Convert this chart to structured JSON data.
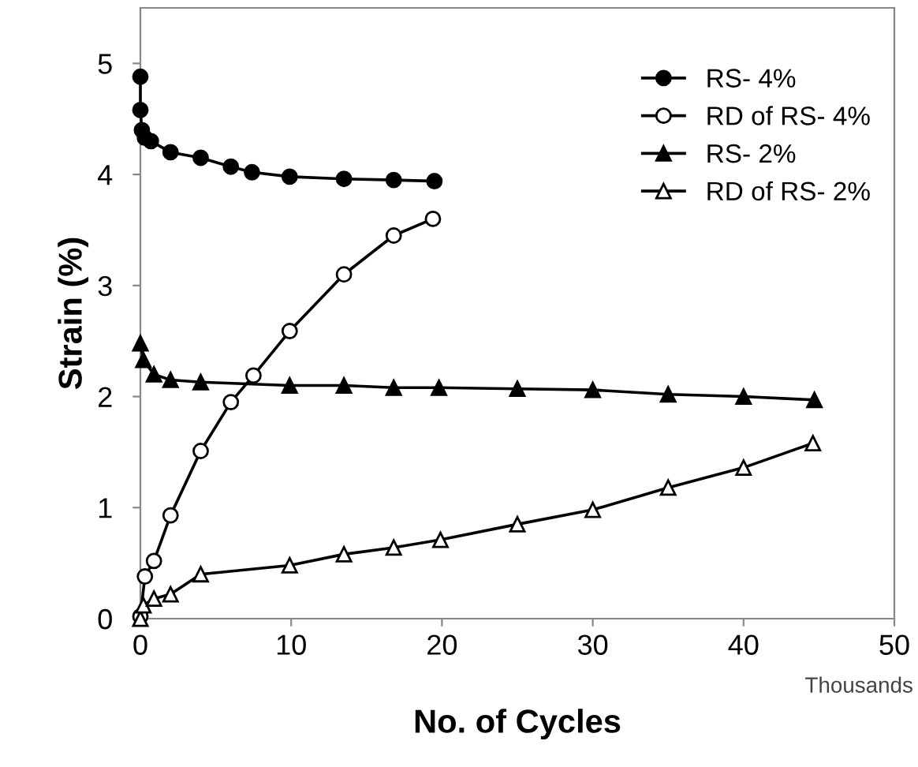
{
  "chart_data": {
    "type": "line",
    "xlabel": "No. of Cycles",
    "ylabel": "Strain (%)",
    "annotations": [
      "Thousands"
    ],
    "xlim": [
      0,
      50
    ],
    "xticks": [
      0,
      10,
      20,
      30,
      40,
      50
    ],
    "ylim": [
      0,
      5.5
    ],
    "yticks": [
      0,
      1,
      2,
      3,
      4,
      5
    ],
    "grid": false,
    "legend": "top right",
    "line_style": "solid",
    "series": [
      {
        "name": "RS- 4%",
        "color": "#000000",
        "marker": "circle",
        "x": [
          0,
          0,
          0.1,
          0.3,
          0.7,
          2,
          4,
          6,
          7.4,
          9.9,
          13.5,
          16.8,
          19.5
        ],
        "values": [
          4.88,
          4.58,
          4.4,
          4.33,
          4.3,
          4.2,
          4.15,
          4.07,
          4.02,
          3.98,
          3.96,
          3.95,
          3.94
        ]
      },
      {
        "name": "RD of RS- 4%",
        "color": "#ffffff",
        "marker": "circle",
        "x": [
          0,
          0.3,
          0.9,
          2,
          4,
          6,
          7.5,
          9.9,
          13.5,
          16.8,
          19.4
        ],
        "values": [
          0.02,
          0.38,
          0.52,
          0.93,
          1.51,
          1.95,
          2.19,
          2.59,
          3.1,
          3.45,
          3.6
        ]
      },
      {
        "name": "RS- 2%",
        "color": "#000000",
        "marker": "triangle",
        "x": [
          0,
          0.2,
          0.9,
          2,
          4,
          9.9,
          13.5,
          16.8,
          19.8,
          25,
          30,
          35,
          40,
          44.7
        ],
        "values": [
          2.48,
          2.33,
          2.2,
          2.15,
          2.13,
          2.1,
          2.1,
          2.08,
          2.08,
          2.07,
          2.06,
          2.02,
          2.0,
          1.97
        ]
      },
      {
        "name": "RD of RS- 2%",
        "color": "#ffffff",
        "marker": "triangle",
        "x": [
          0,
          0.2,
          0.9,
          2,
          4,
          9.9,
          13.5,
          16.8,
          19.9,
          25,
          30,
          35,
          40,
          44.6
        ],
        "values": [
          0,
          0.12,
          0.18,
          0.22,
          0.4,
          0.48,
          0.58,
          0.64,
          0.71,
          0.85,
          0.98,
          1.18,
          1.36,
          1.58
        ]
      }
    ]
  }
}
